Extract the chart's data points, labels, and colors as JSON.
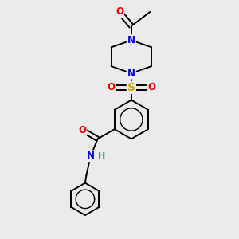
{
  "background_color": "#ebebeb",
  "atom_colors": {
    "C": "#000000",
    "N": "#0000ee",
    "O": "#ee0000",
    "S": "#ccaa00",
    "H": "#00aa88"
  },
  "bond_color": "#000000",
  "figsize": [
    3.0,
    3.0
  ],
  "dpi": 100,
  "lw": 1.4,
  "fs": 8.5,
  "xlim": [
    0,
    10
  ],
  "ylim": [
    0,
    10
  ]
}
